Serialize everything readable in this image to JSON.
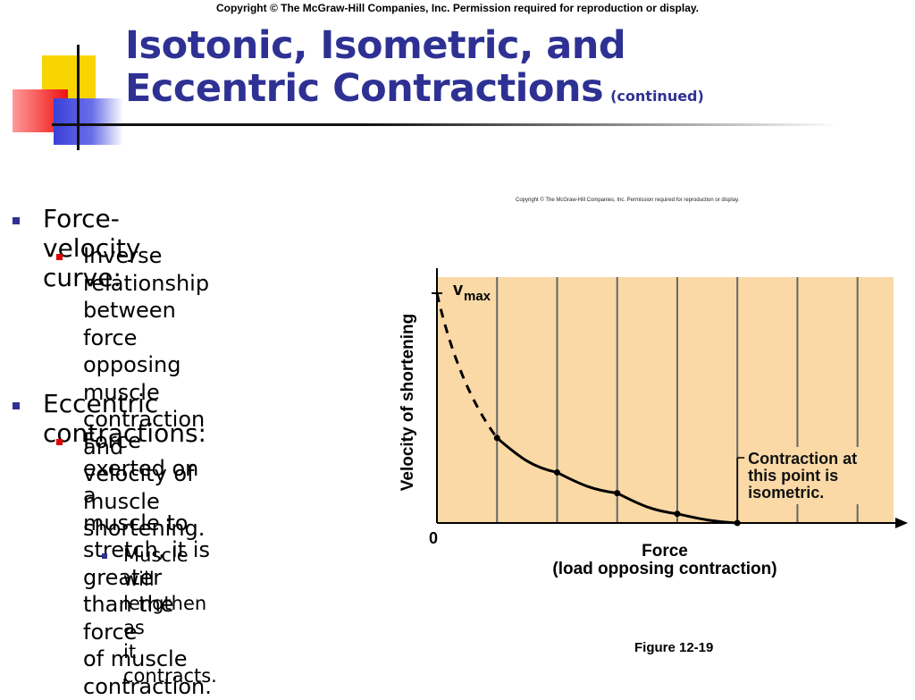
{
  "copyright_top": "Copyright © The McGraw-Hill Companies, Inc. Permission required for reproduction or display.",
  "title": {
    "line1": "Isotonic, Isometric, and",
    "line2": "Eccentric Contractions",
    "suffix": "(continued)"
  },
  "bullets": [
    {
      "level": 1,
      "text": "Force-velocity curve:"
    },
    {
      "level": 2,
      "lines": [
        "Inverse relationship",
        "between force opposing",
        "muscle contraction and",
        "velocity of muscle",
        "shortening."
      ]
    },
    {
      "level": 1,
      "text": "Eccentric contractions:"
    },
    {
      "level": 2,
      "lines": [
        "Force exerted on a",
        "muscle to stretch, it is",
        "greater than the force",
        "of muscle contraction."
      ]
    },
    {
      "level": 3,
      "lines": [
        "Muscle will lengthen as",
        "it contracts."
      ]
    }
  ],
  "chart_copyright": "Copyright © The McGraw-Hill Companies, Inc. Permission required for reproduction or display.",
  "chart_data": {
    "type": "line",
    "xlabel": "Force",
    "xlabel_sub": "(load opposing contraction)",
    "ylabel": "Velocity of shortening",
    "origin_label": "0",
    "vmax_label": "v",
    "vmax_sub": "max",
    "annotation": [
      "Contraction at",
      "this point is",
      "isometric."
    ],
    "background_color": "#fad9a6",
    "curve_color": "#000000",
    "measured_points": [
      {
        "x": 1,
        "y": 0.37
      },
      {
        "x": 2,
        "y": 0.22
      },
      {
        "x": 3,
        "y": 0.13
      },
      {
        "x": 4,
        "y": 0.04
      },
      {
        "x": 5,
        "y": 0.0
      }
    ],
    "extrapolated_start": {
      "x": 0,
      "y": 1.0
    },
    "xlim": [
      0,
      7.6
    ],
    "ylim": [
      0,
      1.07
    ],
    "grid_x": true
  },
  "figure_label": "Figure 12-19"
}
